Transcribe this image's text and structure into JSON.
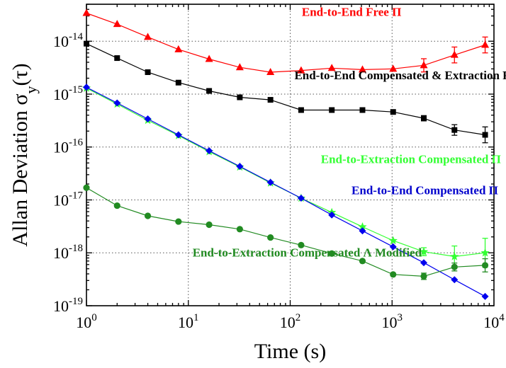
{
  "chart_data": {
    "type": "line",
    "xscale": "log",
    "yscale": "log",
    "xlim": [
      1,
      10000
    ],
    "ylim": [
      1e-19,
      5e-14
    ],
    "grid": true,
    "xlabel": "Time (s)",
    "ylabel": "Allan Deviation σ_y(τ)",
    "ylabel_main": "Allan Deviation σ",
    "ylabel_sub": "y",
    "ylabel_tail": "(τ)",
    "x_ticks": [
      {
        "base": "10",
        "exp": "0",
        "value": 1
      },
      {
        "base": "10",
        "exp": "1",
        "value": 10
      },
      {
        "base": "10",
        "exp": "2",
        "value": 100
      },
      {
        "base": "10",
        "exp": "3",
        "value": 1000
      },
      {
        "base": "10",
        "exp": "4",
        "value": 10000
      }
    ],
    "y_ticks": [
      {
        "base": "10",
        "exp": "-19",
        "value": 1e-19
      },
      {
        "base": "10",
        "exp": "-18",
        "value": 1e-18
      },
      {
        "base": "10",
        "exp": "-17",
        "value": 1e-17
      },
      {
        "base": "10",
        "exp": "-16",
        "value": 1e-16
      },
      {
        "base": "10",
        "exp": "-15",
        "value": 1e-15
      },
      {
        "base": "10",
        "exp": "-14",
        "value": 1e-14
      }
    ],
    "series": [
      {
        "name": "End-to-End Free Π",
        "color": "#ff0000",
        "label_color": "#ff0000",
        "marker": "triangle",
        "x": [
          1,
          2,
          4,
          8,
          16,
          32,
          64,
          128,
          256,
          512,
          1024,
          2048,
          4096,
          8192
        ],
        "y": [
          3.4e-14,
          2.1e-14,
          1.2e-14,
          7e-15,
          4.6e-15,
          3.2e-15,
          2.6e-15,
          2.8e-15,
          3.1e-15,
          2.9e-15,
          3e-15,
          3.5e-15,
          5.5e-15,
          8.5e-15
        ],
        "err": [
          0,
          0,
          0,
          0,
          0,
          0,
          0,
          0,
          0,
          0,
          0,
          0.25,
          0.3,
          0.3
        ]
      },
      {
        "name": "End-to-End Compensated & Extraction Free Π",
        "color": "#000000",
        "label_color": "#000000",
        "marker": "square",
        "x": [
          1,
          2,
          4,
          8,
          16,
          32,
          64,
          128,
          256,
          512,
          1024,
          2048,
          4096,
          8192
        ],
        "y": [
          9e-15,
          4.8e-15,
          2.6e-15,
          1.65e-15,
          1.15e-15,
          8.7e-16,
          7.8e-16,
          5e-16,
          5e-16,
          5e-16,
          4.6e-16,
          3.5e-16,
          2.1e-16,
          1.7e-16
        ],
        "err": [
          0,
          0,
          0,
          0,
          0,
          0,
          0,
          0,
          0,
          0,
          0,
          0.1,
          0.2,
          0.3
        ]
      },
      {
        "name": "End-to-Extraction Compensated Π",
        "color": "#33ff33",
        "label_color": "#33ff33",
        "marker": "star",
        "x": [
          1,
          2,
          4,
          8,
          16,
          32,
          64,
          128,
          256,
          512,
          1024,
          2048,
          4096,
          8192
        ],
        "y": [
          1.3e-15,
          6.5e-16,
          3.2e-16,
          1.65e-16,
          8.2e-17,
          4.2e-17,
          2.1e-17,
          1.08e-17,
          5.8e-18,
          3.1e-18,
          1.7e-18,
          1.05e-18,
          8.5e-19,
          1e-18
        ],
        "err": [
          0,
          0,
          0,
          0,
          0,
          0,
          0,
          0,
          0,
          0,
          0,
          0.15,
          0.4,
          0.55
        ]
      },
      {
        "name": "End-to-End Compensated Π",
        "color": "#0000ee",
        "label_color": "#0000cc",
        "marker": "diamond",
        "x": [
          1,
          2,
          4,
          8,
          16,
          32,
          64,
          128,
          256,
          512,
          1024,
          2048,
          4096,
          8192
        ],
        "y": [
          1.35e-15,
          6.8e-16,
          3.4e-16,
          1.7e-16,
          8.5e-17,
          4.3e-17,
          2.15e-17,
          1.08e-17,
          5.2e-18,
          2.6e-18,
          1.3e-18,
          6.5e-19,
          3.1e-19,
          1.5e-19
        ],
        "err": [
          0,
          0,
          0,
          0,
          0,
          0,
          0,
          0,
          0,
          0,
          0,
          0,
          0,
          0
        ]
      },
      {
        "name": "End-to-Extraction Compensated Λ Modified",
        "color": "#228b22",
        "label_color": "#228b22",
        "marker": "circle",
        "x": [
          1,
          2,
          4,
          8,
          16,
          32,
          64,
          128,
          256,
          512,
          1024,
          2048,
          4096,
          8192
        ],
        "y": [
          1.7e-17,
          7.8e-18,
          5e-18,
          3.9e-18,
          3.4e-18,
          2.8e-18,
          1.95e-18,
          1.4e-18,
          9.7e-19,
          7e-19,
          3.9e-19,
          3.6e-19,
          5.4e-19,
          5.8e-19
        ],
        "err": [
          0,
          0,
          0,
          0,
          0,
          0,
          0,
          0,
          0,
          0,
          0,
          0.12,
          0.15,
          0.25
        ]
      }
    ],
    "annotations": [
      {
        "text": "End-to-End Free Π",
        "series": 0,
        "x": 130,
        "y": 3.6e-14
      },
      {
        "text": "End-to-End Compensated & Extraction Free Π",
        "series": 1,
        "x": 110,
        "y": 2.3e-15
      },
      {
        "text": "End-to-Extraction Compensated Π",
        "series": 2,
        "x": 200,
        "y": 6e-17
      },
      {
        "text": "End-to-End Compensated Π",
        "series": 3,
        "x": 400,
        "y": 1.55e-17
      },
      {
        "text": "End-to-Extraction Compensated Λ Modified",
        "series": 4,
        "x": 11,
        "y": 1.02e-18
      }
    ]
  }
}
